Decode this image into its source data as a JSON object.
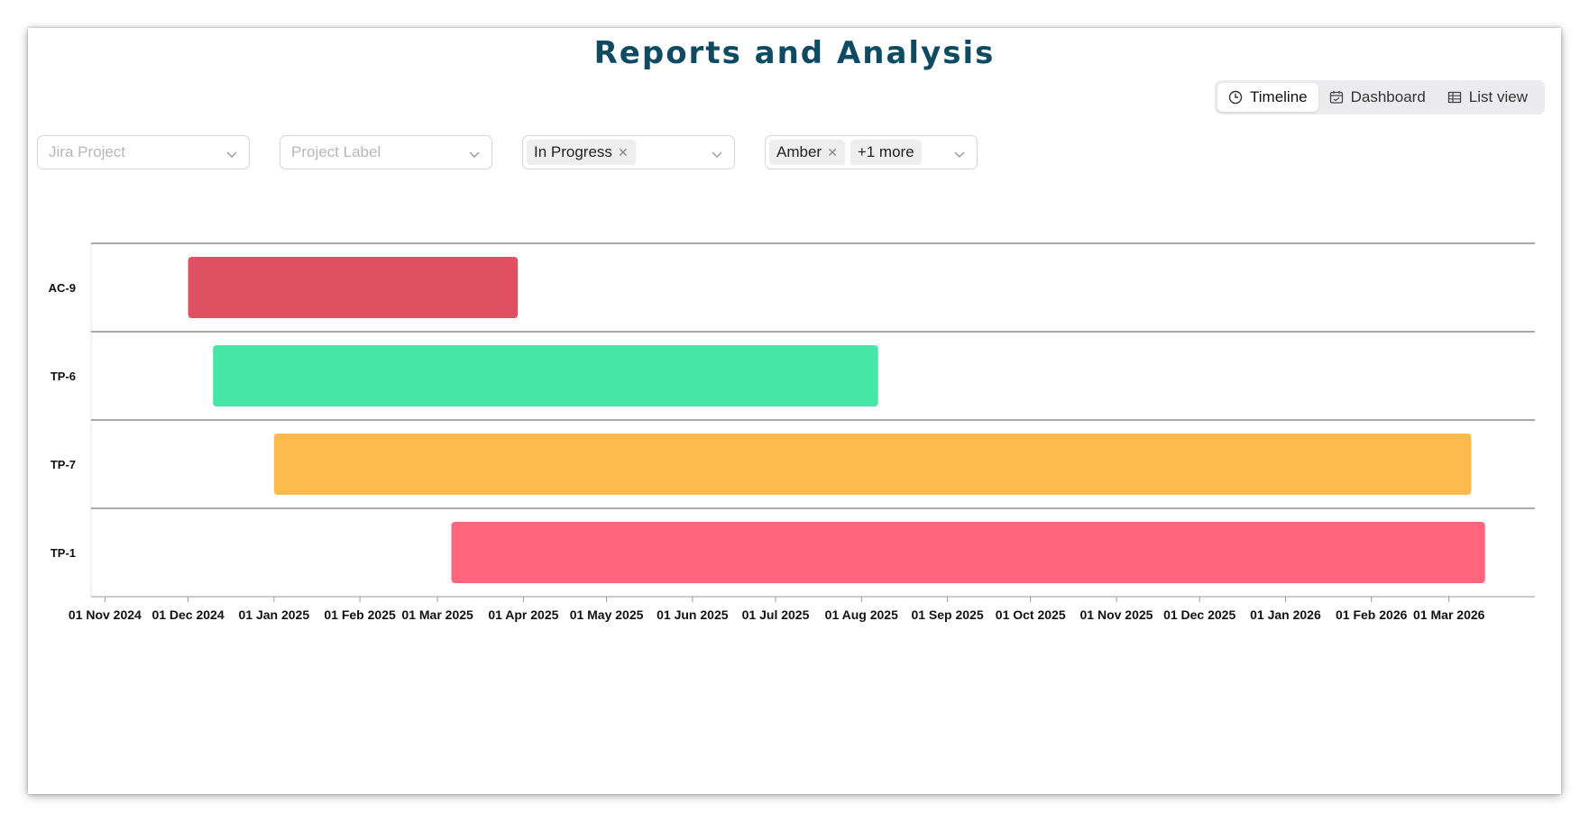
{
  "title": "Reports and Analysis",
  "views": [
    {
      "label": "Timeline",
      "icon": "clock-icon",
      "active": true
    },
    {
      "label": "Dashboard",
      "icon": "calendar-icon",
      "active": false
    },
    {
      "label": "List view",
      "icon": "table-icon",
      "active": false
    }
  ],
  "filters": {
    "jira_project": {
      "placeholder": "Jira Project"
    },
    "project_label": {
      "placeholder": "Project Label"
    },
    "status": {
      "tags": [
        "In Progress"
      ]
    },
    "rag": {
      "tags": [
        "Amber"
      ],
      "more": "+1 more"
    }
  },
  "chart_data": {
    "type": "timeline",
    "rows": [
      {
        "label": "AC-9",
        "start": "2024-12-01",
        "end": "2025-03-30",
        "color": "#df5162"
      },
      {
        "label": "TP-6",
        "start": "2024-12-10",
        "end": "2025-08-07",
        "color": "#45e6a6"
      },
      {
        "label": "TP-7",
        "start": "2025-01-01",
        "end": "2026-03-09",
        "color": "#fdba4d"
      },
      {
        "label": "TP-1",
        "start": "2025-03-06",
        "end": "2026-03-14",
        "color": "#ff657c"
      }
    ],
    "x_ticks": [
      "01 Nov 2024",
      "01 Dec 2024",
      "01 Jan 2025",
      "01 Feb 2025",
      "01 Mar 2025",
      "01 Apr 2025",
      "01 May 2025",
      "01 Jun 2025",
      "01 Jul 2025",
      "01 Aug 2025",
      "01 Sep 2025",
      "01 Oct 2025",
      "01 Nov 2025",
      "01 Dec 2025",
      "01 Jan 2026",
      "01 Feb 2026",
      "01 Mar 2026"
    ],
    "xlim": [
      "2024-10-27",
      "2026-04-01"
    ]
  }
}
